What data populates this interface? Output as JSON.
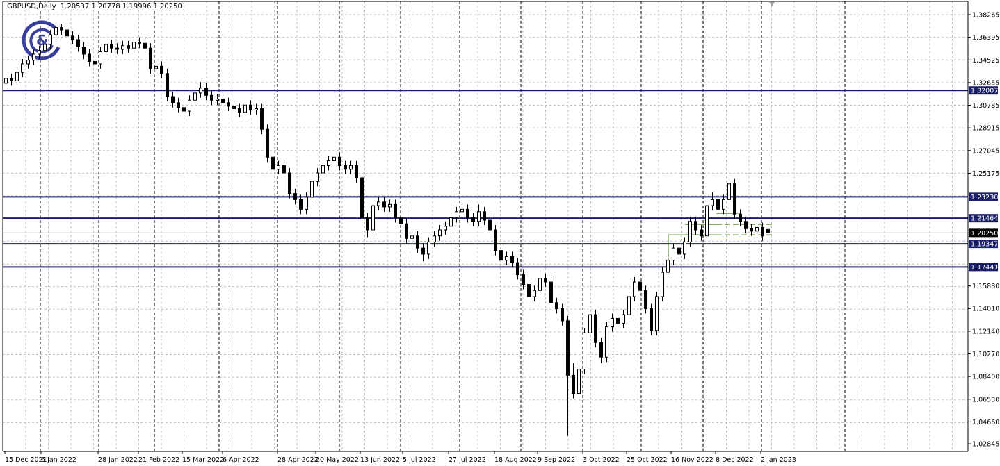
{
  "header": {
    "symbol": "GBPUSD,Daily",
    "open": "1.20537",
    "high": "1.20778",
    "low": "1.19996",
    "close": "1.20250"
  },
  "chart_data": {
    "type": "candlestick",
    "symbol": "GBPUSD",
    "timeframe": "Daily",
    "y_range": [
      1.02845,
      1.38265
    ],
    "y_ticks": [
      "1.38265",
      "1.36395",
      "1.34525",
      "1.32655",
      "1.30785",
      "1.28915",
      "1.27045",
      "1.25175",
      "1.15880",
      "1.14010",
      "1.12140",
      "1.10270",
      "1.08400",
      "1.06530",
      "1.04660",
      "1.02845"
    ],
    "x_ticks": [
      "15 Dec 2021",
      "6 Jan 2022",
      "28 Jan 2022",
      "21 Feb 2022",
      "15 Mar 2022",
      "6 Apr 2022",
      "28 Apr 2022",
      "20 May 2022",
      "13 Jun 2022",
      "5 Jul 2022",
      "27 Jul 2022",
      "18 Aug 2022",
      "9 Sep 2022",
      "3 Oct 2022",
      "25 Oct 2022",
      "16 Nov 2022",
      "8 Dec 2022",
      "2 Jan 2023"
    ],
    "grid": true,
    "horizontal_levels": [
      "1.32007",
      "1.23230",
      "1.21464",
      "1.19347",
      "1.17441"
    ],
    "current_price": "1.20250",
    "step_levels": [
      1.2009,
      1.2095,
      1.2187
    ],
    "colors": {
      "level": "#1b1f6b",
      "bull_body": "#ffffff",
      "bear_body": "#000000",
      "current": "#000000",
      "steps": "#4a7a1a",
      "grid": "#c0c0c0",
      "logo": "#3a3f9c"
    },
    "ohlc": [
      [
        1.326,
        1.334,
        1.322,
        1.33
      ],
      [
        1.33,
        1.334,
        1.324,
        1.328
      ],
      [
        1.328,
        1.339,
        1.324,
        1.335
      ],
      [
        1.335,
        1.346,
        1.331,
        1.342
      ],
      [
        1.342,
        1.349,
        1.338,
        1.345
      ],
      [
        1.345,
        1.354,
        1.341,
        1.35
      ],
      [
        1.35,
        1.357,
        1.346,
        1.353
      ],
      [
        1.353,
        1.362,
        1.349,
        1.358
      ],
      [
        1.358,
        1.37,
        1.354,
        1.366
      ],
      [
        1.366,
        1.376,
        1.362,
        1.372
      ],
      [
        1.372,
        1.375,
        1.366,
        1.37
      ],
      [
        1.37,
        1.374,
        1.361,
        1.365
      ],
      [
        1.365,
        1.369,
        1.358,
        1.362
      ],
      [
        1.362,
        1.366,
        1.352,
        1.356
      ],
      [
        1.356,
        1.36,
        1.346,
        1.35
      ],
      [
        1.35,
        1.354,
        1.34,
        1.344
      ],
      [
        1.344,
        1.348,
        1.338,
        1.342
      ],
      [
        1.342,
        1.356,
        1.338,
        1.352
      ],
      [
        1.352,
        1.362,
        1.348,
        1.358
      ],
      [
        1.358,
        1.362,
        1.351,
        1.355
      ],
      [
        1.355,
        1.359,
        1.35,
        1.354
      ],
      [
        1.354,
        1.361,
        1.35,
        1.357
      ],
      [
        1.357,
        1.361,
        1.351,
        1.355
      ],
      [
        1.355,
        1.364,
        1.351,
        1.36
      ],
      [
        1.36,
        1.364,
        1.355,
        1.359
      ],
      [
        1.359,
        1.363,
        1.351,
        1.355
      ],
      [
        1.355,
        1.359,
        1.334,
        1.338
      ],
      [
        1.338,
        1.344,
        1.334,
        1.34
      ],
      [
        1.34,
        1.344,
        1.33,
        1.334
      ],
      [
        1.334,
        1.338,
        1.311,
        1.315
      ],
      [
        1.315,
        1.319,
        1.306,
        1.31
      ],
      [
        1.31,
        1.314,
        1.302,
        1.306
      ],
      [
        1.306,
        1.31,
        1.299,
        1.303
      ],
      [
        1.303,
        1.316,
        1.299,
        1.312
      ],
      [
        1.312,
        1.322,
        1.308,
        1.318
      ],
      [
        1.318,
        1.327,
        1.314,
        1.322
      ],
      [
        1.322,
        1.326,
        1.312,
        1.316
      ],
      [
        1.316,
        1.32,
        1.308,
        1.312
      ],
      [
        1.312,
        1.317,
        1.308,
        1.313
      ],
      [
        1.313,
        1.317,
        1.306,
        1.31
      ],
      [
        1.31,
        1.314,
        1.303,
        1.307
      ],
      [
        1.307,
        1.311,
        1.301,
        1.305
      ],
      [
        1.305,
        1.309,
        1.298,
        1.302
      ],
      [
        1.302,
        1.312,
        1.298,
        1.308
      ],
      [
        1.308,
        1.312,
        1.3,
        1.304
      ],
      [
        1.304,
        1.309,
        1.3,
        1.305
      ],
      [
        1.305,
        1.309,
        1.284,
        1.288
      ],
      [
        1.288,
        1.292,
        1.261,
        1.265
      ],
      [
        1.265,
        1.269,
        1.251,
        1.255
      ],
      [
        1.255,
        1.262,
        1.251,
        1.258
      ],
      [
        1.258,
        1.262,
        1.248,
        1.252
      ],
      [
        1.252,
        1.256,
        1.231,
        1.235
      ],
      [
        1.235,
        1.239,
        1.226,
        1.23
      ],
      [
        1.23,
        1.234,
        1.218,
        1.222
      ],
      [
        1.222,
        1.236,
        1.218,
        1.232
      ],
      [
        1.232,
        1.249,
        1.228,
        1.245
      ],
      [
        1.245,
        1.256,
        1.241,
        1.252
      ],
      [
        1.252,
        1.262,
        1.248,
        1.258
      ],
      [
        1.258,
        1.266,
        1.254,
        1.262
      ],
      [
        1.262,
        1.269,
        1.258,
        1.265
      ],
      [
        1.265,
        1.269,
        1.254,
        1.258
      ],
      [
        1.258,
        1.262,
        1.251,
        1.255
      ],
      [
        1.255,
        1.262,
        1.251,
        1.258
      ],
      [
        1.258,
        1.262,
        1.244,
        1.248
      ],
      [
        1.248,
        1.252,
        1.211,
        1.215
      ],
      [
        1.215,
        1.219,
        1.199,
        1.205
      ],
      [
        1.205,
        1.229,
        1.201,
        1.225
      ],
      [
        1.225,
        1.232,
        1.221,
        1.228
      ],
      [
        1.228,
        1.232,
        1.22,
        1.224
      ],
      [
        1.224,
        1.23,
        1.22,
        1.226
      ],
      [
        1.226,
        1.23,
        1.211,
        1.215
      ],
      [
        1.215,
        1.219,
        1.206,
        1.21
      ],
      [
        1.21,
        1.214,
        1.194,
        1.198
      ],
      [
        1.198,
        1.204,
        1.194,
        1.2
      ],
      [
        1.2,
        1.204,
        1.186,
        1.19
      ],
      [
        1.19,
        1.194,
        1.179,
        1.185
      ],
      [
        1.185,
        1.199,
        1.181,
        1.195
      ],
      [
        1.195,
        1.204,
        1.191,
        1.2
      ],
      [
        1.2,
        1.209,
        1.196,
        1.205
      ],
      [
        1.205,
        1.212,
        1.201,
        1.208
      ],
      [
        1.208,
        1.219,
        1.204,
        1.215
      ],
      [
        1.215,
        1.224,
        1.211,
        1.22
      ],
      [
        1.22,
        1.227,
        1.216,
        1.222
      ],
      [
        1.222,
        1.226,
        1.211,
        1.215
      ],
      [
        1.215,
        1.219,
        1.208,
        1.212
      ],
      [
        1.212,
        1.226,
        1.208,
        1.22
      ],
      [
        1.22,
        1.224,
        1.209,
        1.213
      ],
      [
        1.213,
        1.217,
        1.201,
        1.205
      ],
      [
        1.205,
        1.209,
        1.184,
        1.188
      ],
      [
        1.188,
        1.192,
        1.176,
        1.18
      ],
      [
        1.18,
        1.187,
        1.176,
        1.183
      ],
      [
        1.183,
        1.187,
        1.174,
        1.178
      ],
      [
        1.178,
        1.182,
        1.164,
        1.168
      ],
      [
        1.168,
        1.172,
        1.156,
        1.16
      ],
      [
        1.16,
        1.164,
        1.146,
        1.15
      ],
      [
        1.15,
        1.159,
        1.146,
        1.155
      ],
      [
        1.155,
        1.172,
        1.151,
        1.165
      ],
      [
        1.165,
        1.169,
        1.158,
        1.162
      ],
      [
        1.162,
        1.166,
        1.141,
        1.145
      ],
      [
        1.145,
        1.149,
        1.136,
        1.14
      ],
      [
        1.14,
        1.144,
        1.126,
        1.13
      ],
      [
        1.13,
        1.134,
        1.035,
        1.085
      ],
      [
        1.085,
        1.095,
        1.066,
        1.07
      ],
      [
        1.07,
        1.094,
        1.066,
        1.09
      ],
      [
        1.09,
        1.124,
        1.086,
        1.12
      ],
      [
        1.12,
        1.149,
        1.116,
        1.135
      ],
      [
        1.135,
        1.139,
        1.108,
        1.112
      ],
      [
        1.112,
        1.116,
        1.095,
        1.1
      ],
      [
        1.1,
        1.129,
        1.096,
        1.125
      ],
      [
        1.125,
        1.136,
        1.121,
        1.132
      ],
      [
        1.132,
        1.138,
        1.124,
        1.128
      ],
      [
        1.128,
        1.139,
        1.124,
        1.135
      ],
      [
        1.135,
        1.154,
        1.131,
        1.15
      ],
      [
        1.15,
        1.166,
        1.146,
        1.162
      ],
      [
        1.162,
        1.166,
        1.151,
        1.155
      ],
      [
        1.155,
        1.159,
        1.136,
        1.14
      ],
      [
        1.14,
        1.144,
        1.118,
        1.122
      ],
      [
        1.122,
        1.154,
        1.118,
        1.15
      ],
      [
        1.15,
        1.174,
        1.146,
        1.17
      ],
      [
        1.17,
        1.184,
        1.166,
        1.18
      ],
      [
        1.18,
        1.194,
        1.176,
        1.19
      ],
      [
        1.19,
        1.194,
        1.181,
        1.185
      ],
      [
        1.185,
        1.199,
        1.181,
        1.195
      ],
      [
        1.195,
        1.216,
        1.191,
        1.212
      ],
      [
        1.212,
        1.216,
        1.201,
        1.205
      ],
      [
        1.205,
        1.209,
        1.196,
        1.2
      ],
      [
        1.2,
        1.229,
        1.196,
        1.225
      ],
      [
        1.225,
        1.236,
        1.221,
        1.23
      ],
      [
        1.23,
        1.234,
        1.218,
        1.222
      ],
      [
        1.222,
        1.234,
        1.218,
        1.23
      ],
      [
        1.23,
        1.247,
        1.226,
        1.243
      ],
      [
        1.243,
        1.247,
        1.214,
        1.218
      ],
      [
        1.218,
        1.222,
        1.208,
        1.212
      ],
      [
        1.212,
        1.216,
        1.202,
        1.206
      ],
      [
        1.206,
        1.21,
        1.2,
        1.204
      ],
      [
        1.204,
        1.211,
        1.2,
        1.207
      ],
      [
        1.207,
        1.211,
        1.196,
        1.2
      ],
      [
        1.20537,
        1.20778,
        1.19996,
        1.2025
      ]
    ]
  }
}
